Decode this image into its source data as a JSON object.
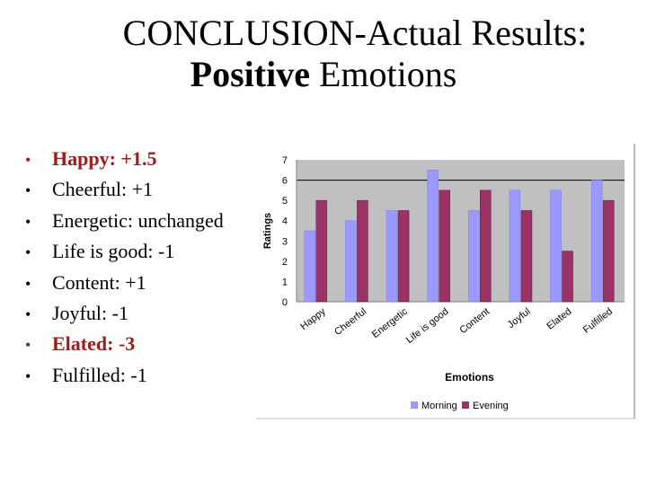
{
  "title": {
    "line1": "CONCLUSION-Actual Results:",
    "line2_bold": "Positive",
    "line2_rest": " Emotions"
  },
  "bullets": [
    {
      "text": "Happy: +1.5",
      "color": "#9b1c1c",
      "highlight": true
    },
    {
      "text": "Cheerful: +1",
      "highlight": false
    },
    {
      "text": "Energetic: unchanged",
      "highlight": false
    },
    {
      "text": "Life is good: -1",
      "highlight": false
    },
    {
      "text": "Content: +1",
      "highlight": false
    },
    {
      "text": "Joyful: -1",
      "highlight": false
    },
    {
      "text": "Elated: -3",
      "color": "#9b1c1c",
      "highlight": true
    },
    {
      "text": "Fulfilled: -1",
      "highlight": false
    }
  ],
  "bullet_glyph": "•",
  "chart_data": {
    "type": "bar",
    "title": "",
    "xlabel": "Emotions",
    "ylabel": "Ratings",
    "ylim": [
      0,
      7
    ],
    "yticks": [
      "0",
      "1",
      "2",
      "3",
      "4",
      "5",
      "6",
      "7"
    ],
    "gridlines": [
      6
    ],
    "categories": [
      "Happy",
      "Cheerful",
      "Energetic",
      "Life is good",
      "Content",
      "Joyful",
      "Elated",
      "Fulfilled"
    ],
    "series": [
      {
        "name": "Morning",
        "color": "#9999ff",
        "values": [
          3.5,
          4,
          4.5,
          6.5,
          4.5,
          5.5,
          5.5,
          6
        ]
      },
      {
        "name": "Evening",
        "color": "#993366",
        "values": [
          5,
          5,
          4.5,
          5.5,
          5.5,
          4.5,
          2.5,
          5
        ]
      }
    ],
    "plot_bg": "#c0c0c0",
    "legend_position": "bottom"
  }
}
